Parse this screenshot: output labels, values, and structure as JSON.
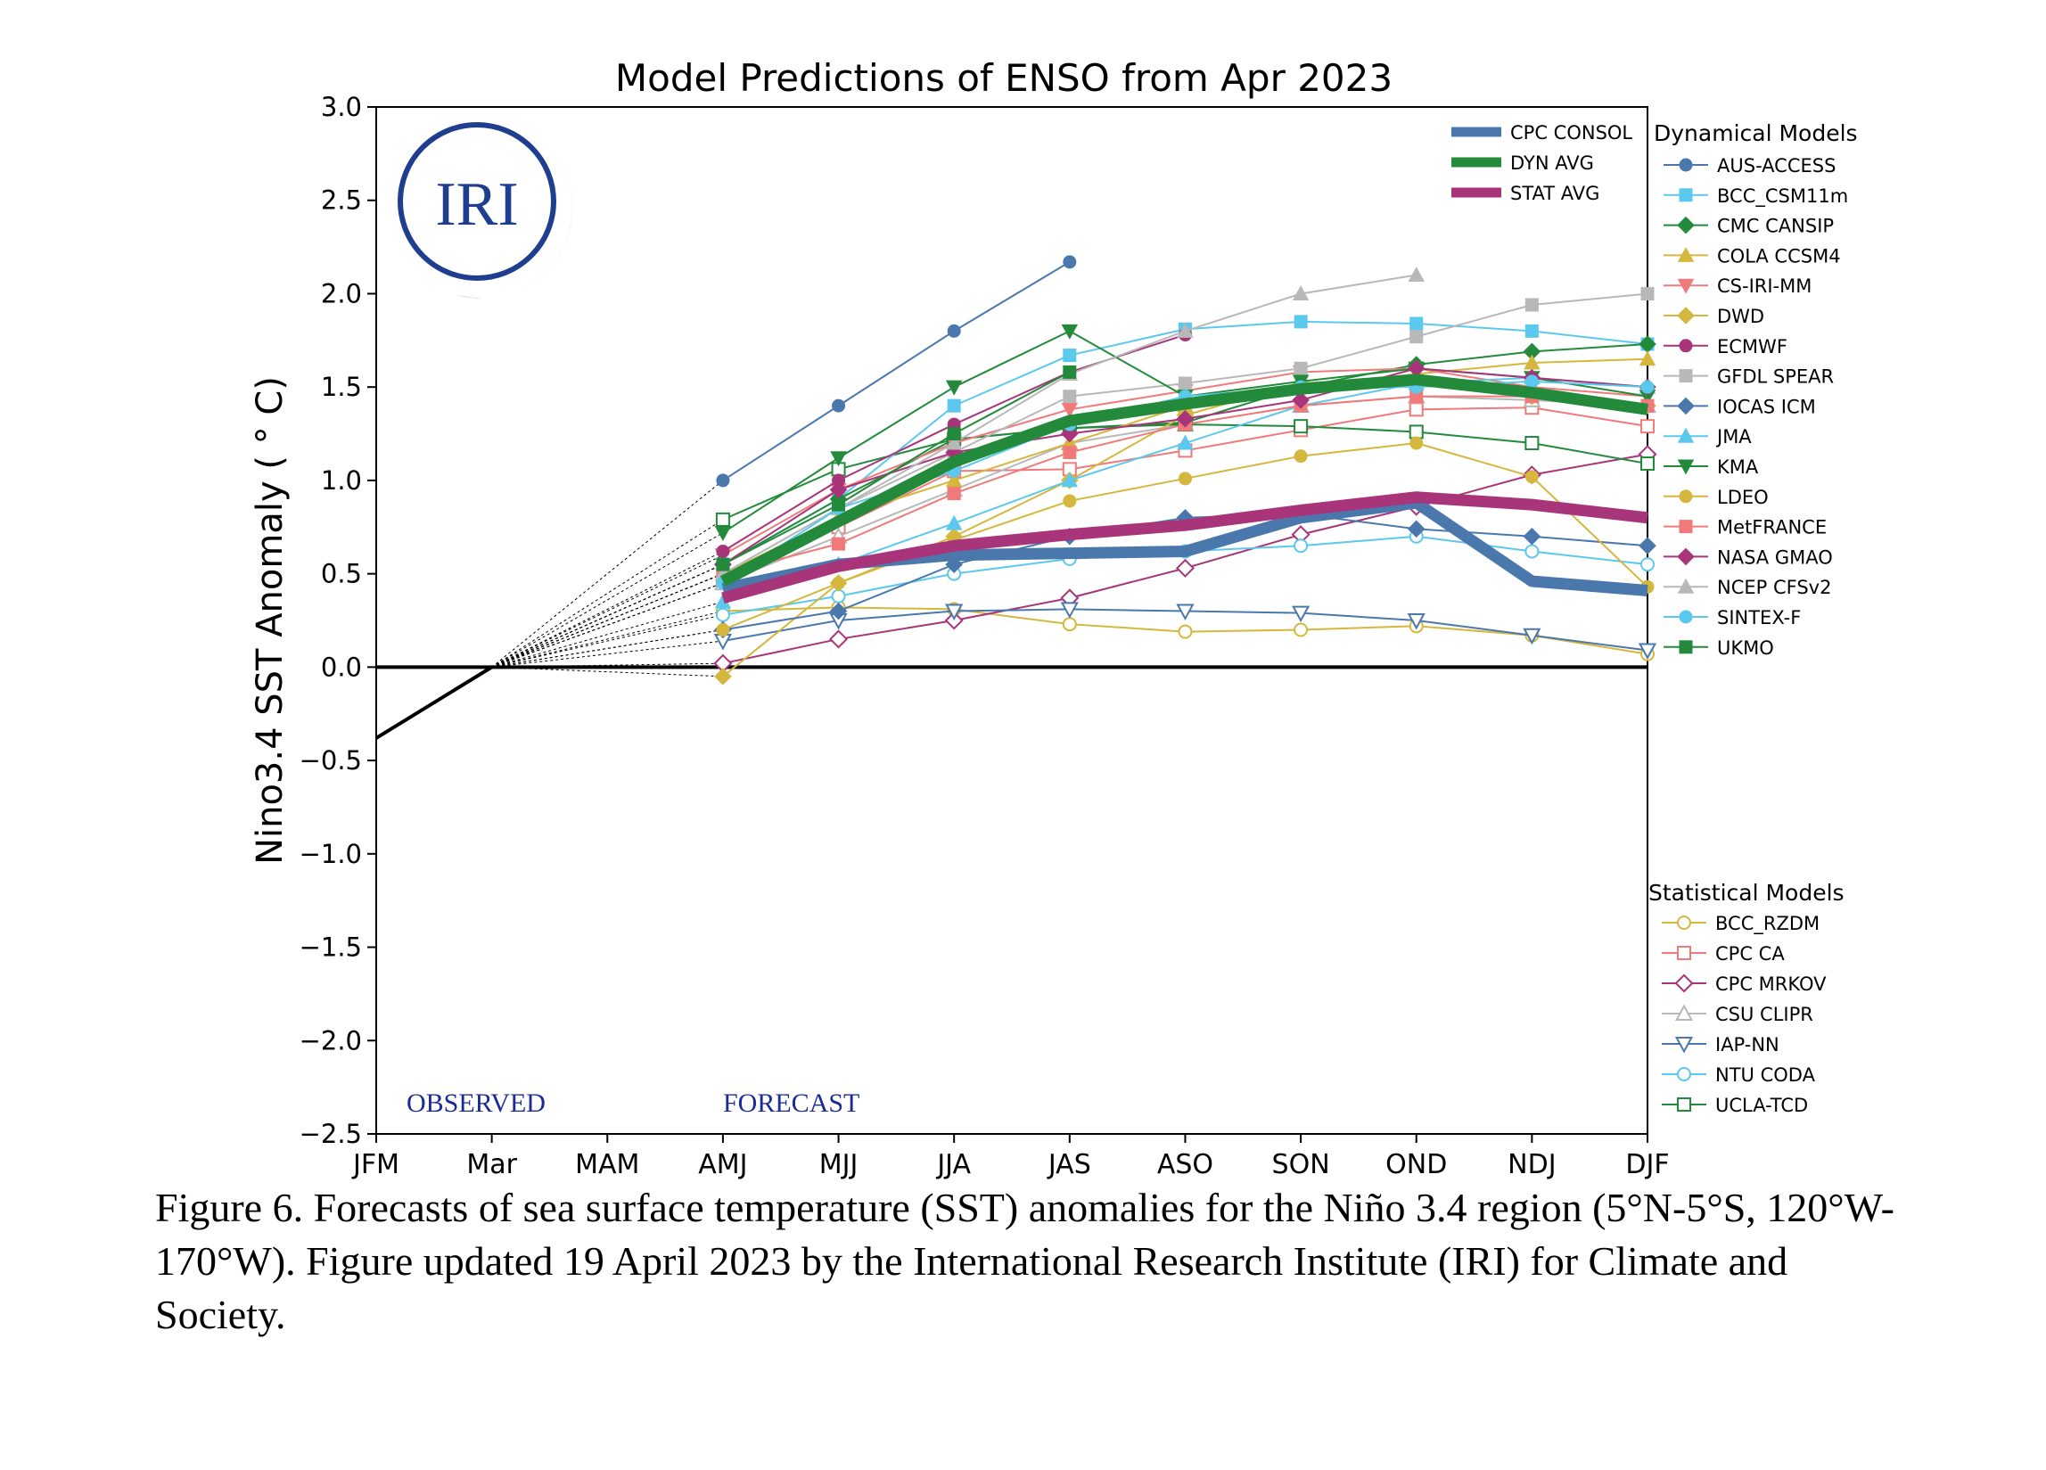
{
  "chart_data": {
    "type": "line",
    "title": "Model Predictions of ENSO from Apr 2023",
    "ylabel": "Nino3.4 SST Anomaly ( ° C)",
    "xlabel": "",
    "categories": [
      "JFM",
      "Mar",
      "MAM",
      "AMJ",
      "MJJ",
      "JJA",
      "JAS",
      "ASO",
      "SON",
      "OND",
      "NDJ",
      "DJF"
    ],
    "yticks": [
      "3.0",
      "2.5",
      "2.0",
      "1.5",
      "1.0",
      "0.5",
      "0.0",
      "−0.5",
      "−1.0",
      "−1.5",
      "−2.0",
      "−2.5"
    ],
    "ylim": [
      -2.5,
      3.0
    ],
    "grid": true,
    "legend_placement": "right",
    "observed": {
      "label": "OBSERVED",
      "color": "#000000",
      "values": [
        -0.38,
        0.0
      ]
    },
    "forecast_label": "FORECAST",
    "logo_text": "IRI",
    "legend_summary_title": "",
    "legend_dyn_title": "Dynamical Models",
    "legend_stat_title": "Statistical Models",
    "summary_series": [
      {
        "name": "CPC CONSOL",
        "color": "#4a78ad",
        "values": [
          0.42,
          0.55,
          0.6,
          0.61,
          0.62,
          0.8,
          0.88,
          0.46,
          0.41
        ]
      },
      {
        "name": "DYN AVG",
        "color": "#238a3c",
        "values": [
          0.46,
          0.78,
          1.1,
          1.32,
          1.41,
          1.49,
          1.54,
          1.47,
          1.38
        ]
      },
      {
        "name": "STAT AVG",
        "color": "#a8357a",
        "values": [
          0.37,
          0.54,
          0.65,
          0.71,
          0.76,
          0.84,
          0.91,
          0.87,
          0.8
        ]
      }
    ],
    "dynamical_series": [
      {
        "name": "AUS-ACCESS",
        "color": "#4a78ad",
        "marker": "circle",
        "values": [
          1.0,
          1.4,
          1.8,
          2.17,
          null,
          null,
          null,
          null,
          null
        ]
      },
      {
        "name": "BCC_CSM11m",
        "color": "#5bc8ee",
        "marker": "square",
        "values": [
          0.55,
          0.9,
          1.4,
          1.67,
          1.81,
          1.85,
          1.84,
          1.8,
          1.73
        ]
      },
      {
        "name": "CMC CANSIP",
        "color": "#238a3c",
        "marker": "diamond",
        "values": [
          0.55,
          0.9,
          1.22,
          1.28,
          1.31,
          1.5,
          1.62,
          1.69,
          1.73
        ]
      },
      {
        "name": "COLA CCSM4",
        "color": "#d4b73c",
        "marker": "triangle-up",
        "values": [
          0.5,
          0.8,
          1.0,
          1.2,
          1.4,
          1.5,
          1.57,
          1.63,
          1.65
        ]
      },
      {
        "name": "CS-IRI-MM",
        "color": "#f07a7a",
        "marker": "triangle-down",
        "values": [
          0.6,
          0.95,
          1.2,
          1.38,
          1.48,
          1.58,
          1.6,
          1.5,
          1.45
        ]
      },
      {
        "name": "DWD",
        "color": "#d4b73c",
        "marker": "diamond",
        "values": [
          -0.05,
          0.45,
          0.7,
          1.0,
          1.35,
          1.52,
          1.55,
          1.45,
          1.4
        ]
      },
      {
        "name": "ECMWF",
        "color": "#a8357a",
        "marker": "circle",
        "values": [
          0.62,
          1.0,
          1.3,
          1.58,
          1.78,
          null,
          null,
          null,
          null
        ]
      },
      {
        "name": "GFDL SPEAR",
        "color": "#b8b8b8",
        "marker": "square",
        "values": [
          0.5,
          0.85,
          1.15,
          1.45,
          1.52,
          1.6,
          1.77,
          1.94,
          2.0
        ]
      },
      {
        "name": "IOCAS ICM",
        "color": "#4a78ad",
        "marker": "diamond",
        "values": [
          0.2,
          0.3,
          0.55,
          0.7,
          0.8,
          0.82,
          0.74,
          0.7,
          0.65
        ]
      },
      {
        "name": "JMA",
        "color": "#5bc8ee",
        "marker": "triangle-up",
        "values": [
          0.35,
          0.55,
          0.77,
          1.0,
          1.2,
          1.4,
          1.52,
          1.55,
          1.5
        ]
      },
      {
        "name": "KMA",
        "color": "#238a3c",
        "marker": "triangle-down",
        "values": [
          0.72,
          1.12,
          1.5,
          1.8,
          1.45,
          1.53,
          1.6,
          1.55,
          1.45
        ]
      },
      {
        "name": "LDEO",
        "color": "#d4b73c",
        "marker": "circle",
        "values": [
          0.2,
          0.45,
          0.68,
          0.89,
          1.01,
          1.13,
          1.2,
          1.02,
          0.43
        ]
      },
      {
        "name": "MetFRANCE",
        "color": "#f07a7a",
        "marker": "square",
        "values": [
          0.5,
          0.66,
          0.93,
          1.15,
          1.3,
          1.4,
          1.45,
          1.45,
          1.4
        ]
      },
      {
        "name": "NASA GMAO",
        "color": "#a8357a",
        "marker": "diamond",
        "values": [
          0.55,
          0.95,
          1.15,
          1.25,
          1.33,
          1.43,
          1.6,
          1.55,
          1.5
        ]
      },
      {
        "name": "NCEP CFSv2",
        "color": "#b8b8b8",
        "marker": "triangle-up",
        "values": [
          0.5,
          0.85,
          1.2,
          1.57,
          1.8,
          2.0,
          2.1,
          null,
          null
        ]
      },
      {
        "name": "SINTEX-F",
        "color": "#5bc8ee",
        "marker": "circle",
        "values": [
          0.45,
          0.85,
          1.05,
          1.3,
          1.45,
          1.5,
          1.5,
          1.53,
          1.5
        ]
      },
      {
        "name": "UKMO",
        "color": "#238a3c",
        "marker": "square",
        "values": [
          0.55,
          0.87,
          1.25,
          1.58,
          null,
          null,
          null,
          null,
          null
        ]
      }
    ],
    "statistical_series": [
      {
        "name": "BCC_RZDM",
        "color": "#d4b73c",
        "marker": "circle-open",
        "values": [
          0.3,
          0.32,
          0.31,
          0.23,
          0.19,
          0.2,
          0.22,
          0.17,
          0.07
        ]
      },
      {
        "name": "CPC CA",
        "color": "#f07a7a",
        "marker": "square-open",
        "values": [
          0.45,
          0.75,
          1.05,
          1.06,
          1.16,
          1.27,
          1.38,
          1.39,
          1.29
        ]
      },
      {
        "name": "CPC MRKOV",
        "color": "#a8357a",
        "marker": "diamond-open",
        "values": [
          0.02,
          0.15,
          0.25,
          0.37,
          0.53,
          0.71,
          0.86,
          1.03,
          1.14
        ]
      },
      {
        "name": "CSU CLIPR",
        "color": "#b8b8b8",
        "marker": "triangle-up-open",
        "values": [
          0.45,
          0.7,
          0.95,
          1.2,
          1.3,
          1.4,
          1.45,
          1.43,
          1.4
        ]
      },
      {
        "name": "IAP-NN",
        "color": "#4a78ad",
        "marker": "triangle-down-open",
        "values": [
          0.14,
          0.25,
          0.3,
          0.31,
          0.3,
          0.29,
          0.25,
          0.17,
          0.09
        ]
      },
      {
        "name": "NTU CODA",
        "color": "#5bc8ee",
        "marker": "circle-open",
        "values": [
          0.28,
          0.38,
          0.5,
          0.58,
          0.62,
          0.65,
          0.7,
          0.62,
          0.55
        ]
      },
      {
        "name": "UCLA-TCD",
        "color": "#238a3c",
        "marker": "square-open",
        "values": [
          0.79,
          1.06,
          1.22,
          1.28,
          1.3,
          1.29,
          1.26,
          1.2,
          1.09
        ]
      }
    ]
  },
  "caption": "Figure 6. Forecasts of sea surface temperature (SST) anomalies for the Niño 3.4 region (5°N-5°S, 120°W-170°W). Figure updated 19 April 2023 by the International Research Institute (IRI) for Climate and Society."
}
